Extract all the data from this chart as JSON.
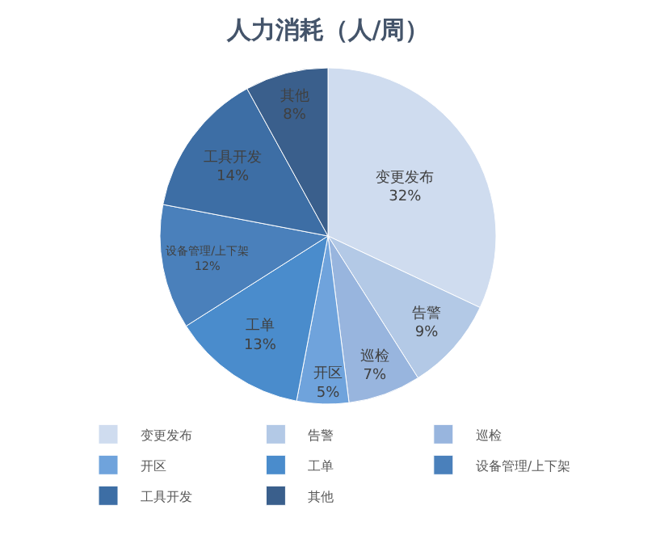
{
  "chart_data": {
    "type": "pie",
    "title": "人力消耗（人/周）",
    "categories": [
      "变更发布",
      "告警",
      "巡检",
      "开区",
      "工单",
      "设备管理/上下架",
      "工具开发",
      "其他"
    ],
    "values": [
      32,
      9,
      7,
      5,
      13,
      12,
      14,
      8
    ],
    "value_labels": [
      "32%",
      "9%",
      "7%",
      "5%",
      "13%",
      "12%",
      "14%",
      "8%"
    ],
    "colors": [
      "#cfdcef",
      "#b3c9e6",
      "#98b5de",
      "#6fa3dc",
      "#4a8ccc",
      "#4a80bb",
      "#3d6ea5",
      "#3a5f8c"
    ],
    "legend": "bottom"
  }
}
